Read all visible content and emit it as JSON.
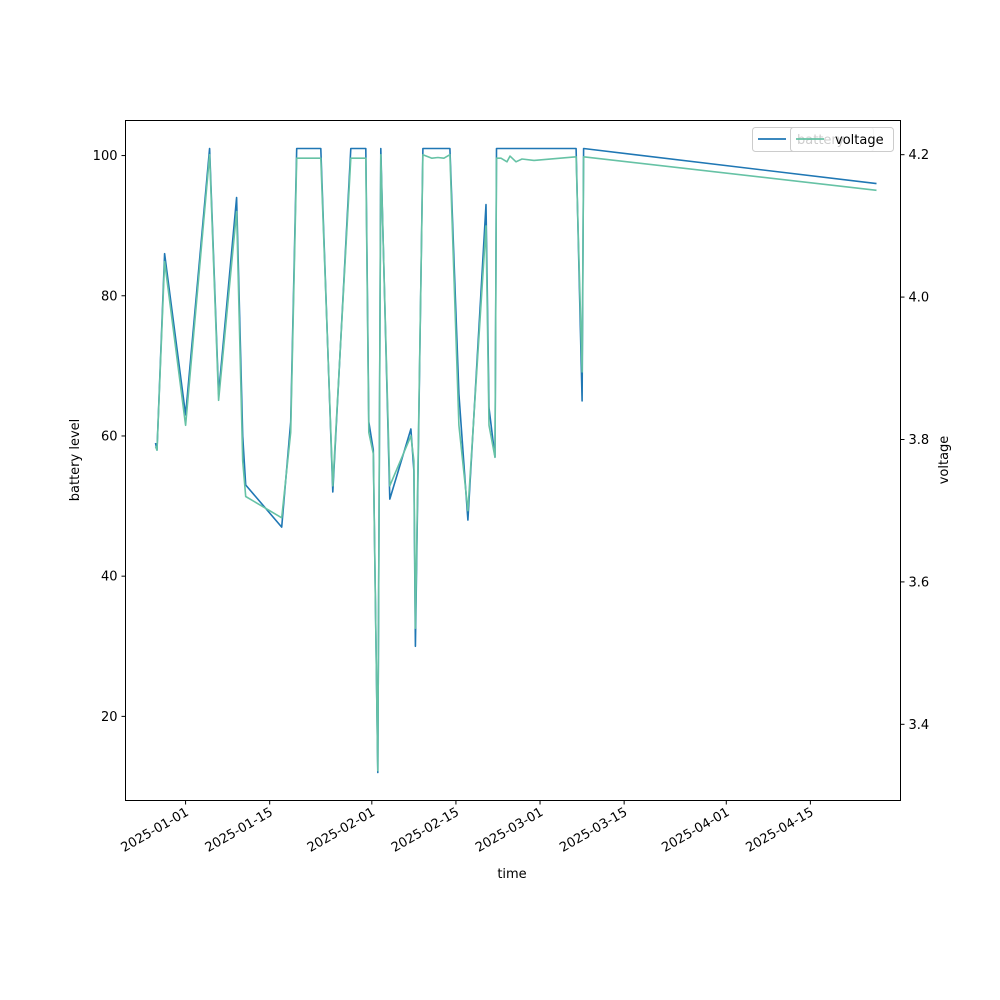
{
  "chart_data": {
    "type": "line",
    "xlabel": "time",
    "ylabel_left": "battery level",
    "ylabel_right": "voltage",
    "x_range": [
      "2024-12-22",
      "2025-04-30"
    ],
    "ylim_left": [
      8,
      105
    ],
    "ylim_right": [
      3.293,
      4.248
    ],
    "x_ticks": [
      "2025-01-01",
      "2025-01-15",
      "2025-02-01",
      "2025-02-15",
      "2025-03-01",
      "2025-03-15",
      "2025-04-01",
      "2025-04-15"
    ],
    "y_ticks_left": [
      20,
      40,
      60,
      80,
      100
    ],
    "y_ticks_right": [
      3.4,
      3.6,
      3.8,
      4.0,
      4.2
    ],
    "grid": false,
    "legend_placement": "top-right",
    "series": [
      {
        "name": "battery",
        "axis": "left",
        "color": "#1f77b4",
        "points": [
          [
            "2024-12-27T00:00",
            59
          ],
          [
            "2024-12-27T06:00",
            58
          ],
          [
            "2024-12-28T12:00",
            86
          ],
          [
            "2025-01-01T00:00",
            63
          ],
          [
            "2025-01-05T00:00",
            101
          ],
          [
            "2025-01-06T12:00",
            66
          ],
          [
            "2025-01-09T12:00",
            94
          ],
          [
            "2025-01-10T12:00",
            60
          ],
          [
            "2025-01-11T00:00",
            53
          ],
          [
            "2025-01-17T00:00",
            47
          ],
          [
            "2025-01-18T12:00",
            62
          ],
          [
            "2025-01-19T12:00",
            101
          ],
          [
            "2025-01-23T12:00",
            101
          ],
          [
            "2025-01-25T12:00",
            52
          ],
          [
            "2025-01-28T12:00",
            101
          ],
          [
            "2025-01-31T00:00",
            101
          ],
          [
            "2025-01-31T12:00",
            62
          ],
          [
            "2025-02-01T06:00",
            58
          ],
          [
            "2025-02-02T00:00",
            12
          ],
          [
            "2025-02-02T12:00",
            101
          ],
          [
            "2025-02-04T00:00",
            51
          ],
          [
            "2025-02-07T12:00",
            61
          ],
          [
            "2025-02-08T00:00",
            55
          ],
          [
            "2025-02-08T06:00",
            30
          ],
          [
            "2025-02-09T12:00",
            101
          ],
          [
            "2025-02-14T00:00",
            101
          ],
          [
            "2025-02-15T12:00",
            66
          ],
          [
            "2025-02-17T00:00",
            48
          ],
          [
            "2025-02-20T00:00",
            93
          ],
          [
            "2025-02-20T12:00",
            64
          ],
          [
            "2025-02-21T12:00",
            57
          ],
          [
            "2025-02-21T18:00",
            101
          ],
          [
            "2025-03-07T00:00",
            101
          ],
          [
            "2025-03-08T00:00",
            65
          ],
          [
            "2025-03-08T06:00",
            101
          ],
          [
            "2025-04-26T00:00",
            96
          ]
        ]
      },
      {
        "name": "voltage",
        "axis": "right",
        "color": "#66c2a5",
        "points": [
          [
            "2024-12-27T00:00",
            3.79
          ],
          [
            "2024-12-27T06:00",
            3.785
          ],
          [
            "2024-12-28T12:00",
            4.05
          ],
          [
            "2025-01-01T00:00",
            3.82
          ],
          [
            "2025-01-05T00:00",
            4.2
          ],
          [
            "2025-01-06T12:00",
            3.855
          ],
          [
            "2025-01-09T12:00",
            4.12
          ],
          [
            "2025-01-10T12:00",
            3.77
          ],
          [
            "2025-01-11T00:00",
            3.72
          ],
          [
            "2025-01-17T00:00",
            3.69
          ],
          [
            "2025-01-18T12:00",
            3.81
          ],
          [
            "2025-01-19T12:00",
            4.195
          ],
          [
            "2025-01-23T12:00",
            4.195
          ],
          [
            "2025-01-25T12:00",
            3.735
          ],
          [
            "2025-01-28T12:00",
            4.195
          ],
          [
            "2025-01-31T00:00",
            4.195
          ],
          [
            "2025-01-31T12:00",
            3.81
          ],
          [
            "2025-02-01T06:00",
            3.78
          ],
          [
            "2025-02-02T00:00",
            3.335
          ],
          [
            "2025-02-02T12:00",
            4.2
          ],
          [
            "2025-02-04T00:00",
            3.735
          ],
          [
            "2025-02-07T12:00",
            3.805
          ],
          [
            "2025-02-08T00:00",
            3.77
          ],
          [
            "2025-02-08T06:00",
            3.535
          ],
          [
            "2025-02-09T12:00",
            4.2
          ],
          [
            "2025-02-11T00:00",
            4.195
          ],
          [
            "2025-02-12T00:00",
            4.196
          ],
          [
            "2025-02-13T00:00",
            4.195
          ],
          [
            "2025-02-14T00:00",
            4.2
          ],
          [
            "2025-02-15T12:00",
            3.82
          ],
          [
            "2025-02-17T00:00",
            3.7
          ],
          [
            "2025-02-20T00:00",
            4.1
          ],
          [
            "2025-02-20T12:00",
            3.82
          ],
          [
            "2025-02-21T12:00",
            3.775
          ],
          [
            "2025-02-21T18:00",
            4.195
          ],
          [
            "2025-02-22T12:00",
            4.195
          ],
          [
            "2025-02-23T12:00",
            4.19
          ],
          [
            "2025-02-24T00:00",
            4.198
          ],
          [
            "2025-02-25T00:00",
            4.19
          ],
          [
            "2025-02-26T00:00",
            4.194
          ],
          [
            "2025-02-28T00:00",
            4.192
          ],
          [
            "2025-03-07T00:00",
            4.197
          ],
          [
            "2025-03-08T00:00",
            3.895
          ],
          [
            "2025-03-08T06:00",
            4.197
          ],
          [
            "2025-04-26T00:00",
            4.15
          ]
        ]
      }
    ]
  }
}
